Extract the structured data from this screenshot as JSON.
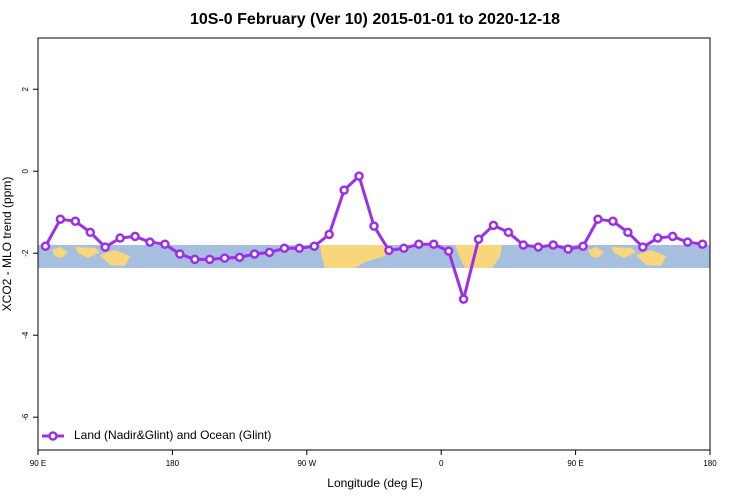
{
  "chart_data": {
    "type": "line",
    "title": "10S-0 February (Ver 10)   2015-01-01 to 2020-12-18",
    "x_label": "Longitude (deg E)",
    "y_label": "XCO2 - MLO trend (ppm)",
    "xlim": [
      90,
      540
    ],
    "xticks": [
      {
        "value": 90,
        "label": "90 E"
      },
      {
        "value": 180,
        "label": "180"
      },
      {
        "value": 270,
        "label": "90 W"
      },
      {
        "value": 360,
        "label": "0"
      },
      {
        "value": 450,
        "label": "90 E"
      },
      {
        "value": 540,
        "label": "180"
      }
    ],
    "ylim": [
      -6.8,
      3.25
    ],
    "yticks": [
      -6,
      -4,
      -2,
      0,
      2
    ],
    "x": [
      95,
      105,
      115,
      125,
      135,
      145,
      155,
      165,
      175,
      185,
      195,
      205,
      215,
      225,
      235,
      245,
      255,
      265,
      275,
      285,
      295,
      305,
      315,
      325,
      335,
      345,
      355,
      365,
      375,
      385,
      395,
      405,
      415,
      425,
      435,
      445,
      455,
      465,
      475,
      485,
      495,
      505,
      515,
      525,
      535
    ],
    "series": [
      {
        "name": "Land (Nadir&Glint) and Ocean (Glint)",
        "color": "#9b30e8",
        "values": [
          -1.83,
          -1.17,
          -1.22,
          -1.49,
          -1.85,
          -1.63,
          -1.59,
          -1.73,
          -1.78,
          -2.02,
          -2.15,
          -2.15,
          -2.12,
          -2.1,
          -2.02,
          -1.98,
          -1.88,
          -1.88,
          -1.83,
          -1.54,
          -0.46,
          -0.12,
          -1.34,
          -1.93,
          -1.88,
          -1.78,
          -1.78,
          -1.95,
          -3.12,
          -1.66,
          -1.32,
          -1.49,
          -1.8,
          -1.85,
          -1.8,
          -1.9,
          -1.83,
          -1.17,
          -1.22,
          -1.49,
          -1.85,
          -1.63,
          -1.59,
          -1.73,
          -1.78
        ]
      }
    ],
    "legend": "bottom-left"
  }
}
